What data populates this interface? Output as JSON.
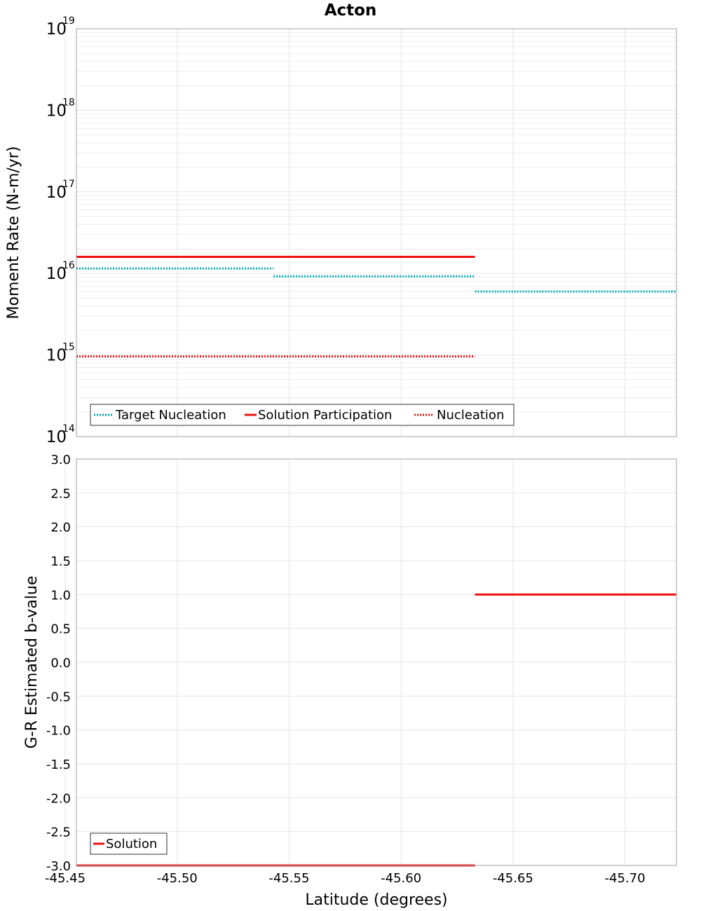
{
  "colors": {
    "target": "#00a8b0",
    "solution": "#ee1010",
    "grid": "#e6e6e6",
    "frame": "#a0a0a0"
  },
  "chart_data": [
    {
      "type": "line",
      "title": "Acton",
      "xlabel": "",
      "ylabel": "Moment Rate (N-m/yr)",
      "yscale": "log",
      "xlim": [
        -45.455,
        -45.723
      ],
      "ylim": [
        100000000000000.0,
        1e+19
      ],
      "y_tick_base": "10",
      "y_tick_exponents": [
        "14",
        "15",
        "16",
        "17",
        "18",
        "19"
      ],
      "grid": true,
      "legend_placement": "bottom-left",
      "series": [
        {
          "name": "Target Nucleation",
          "style": "dotted",
          "color": "#00a8b0",
          "segments": [
            {
              "x": [
                -45.455,
                -45.543
              ],
              "y": 1.15e+16
            },
            {
              "x": [
                -45.543,
                -45.633
              ],
              "y": 9200000000000000.0
            },
            {
              "x": [
                -45.633,
                -45.723
              ],
              "y": 6000000000000000.0
            }
          ]
        },
        {
          "name": "Solution Participation",
          "style": "solid",
          "color": "#ee1010",
          "segments": [
            {
              "x": [
                -45.455,
                -45.633
              ],
              "y": 1.6e+16
            }
          ]
        },
        {
          "name": "Nucleation",
          "style": "dotted",
          "color": "#ee1010",
          "segments": [
            {
              "x": [
                -45.455,
                -45.633
              ],
              "y": 960000000000000.0
            }
          ]
        }
      ]
    },
    {
      "type": "line",
      "title": "",
      "xlabel": "Latitude (degrees)",
      "ylabel": "G-R Estimated b-value",
      "xlim": [
        -45.455,
        -45.723
      ],
      "ylim": [
        -3.0,
        3.0
      ],
      "x_ticks": [
        -45.45,
        -45.5,
        -45.55,
        -45.6,
        -45.65,
        -45.7
      ],
      "x_tick_labels": [
        "-45.45",
        "-45.50",
        "-45.55",
        "-45.60",
        "-45.65",
        "-45.70"
      ],
      "y_ticks": [
        3.0,
        2.5,
        2.0,
        1.5,
        1.0,
        0.5,
        0.0,
        -0.5,
        -1.0,
        -1.5,
        -2.0,
        -2.5,
        -3.0
      ],
      "y_tick_labels": [
        "3.0",
        "2.5",
        "2.0",
        "1.5",
        "1.0",
        "0.5",
        "0.0",
        "-0.5",
        "-1.0",
        "-1.5",
        "-2.0",
        "-2.5",
        "-3.0"
      ],
      "grid": true,
      "legend_placement": "bottom-left",
      "series": [
        {
          "name": "Solution",
          "style": "solid",
          "color": "#ee1010",
          "segments": [
            {
              "x": [
                -45.455,
                -45.633
              ],
              "y": -3.0
            },
            {
              "x": [
                -45.633,
                -45.723
              ],
              "y": 1.0
            }
          ]
        }
      ]
    }
  ]
}
